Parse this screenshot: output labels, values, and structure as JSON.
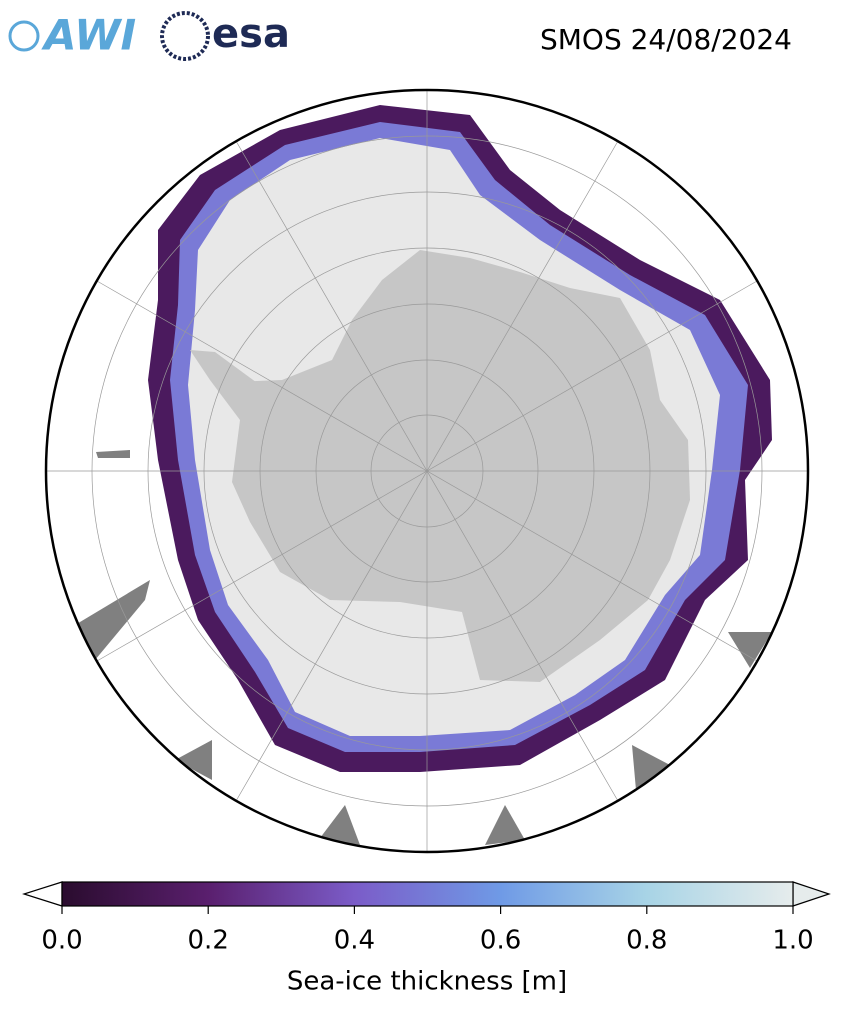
{
  "header": {
    "logos": [
      "AWI",
      "esa"
    ],
    "title": "SMOS 24/08/2024"
  },
  "colorbar": {
    "label": "Sea-ice thickness [m]",
    "range": [
      0,
      1
    ],
    "colors": [
      "#2a0c2e",
      "#5a1f6e",
      "#7b5cc8",
      "#6f9ae6",
      "#a8d4e6",
      "#e6ecec"
    ],
    "ticks": [
      {
        "value": 0,
        "label": "0.0"
      },
      {
        "value": 0.2,
        "label": "0.2"
      },
      {
        "value": 0.4,
        "label": "0.4"
      },
      {
        "value": 0.6,
        "label": "0.6"
      },
      {
        "value": 0.8,
        "label": "0.8"
      },
      {
        "value": 1,
        "label": "1.0"
      }
    ]
  }
}
